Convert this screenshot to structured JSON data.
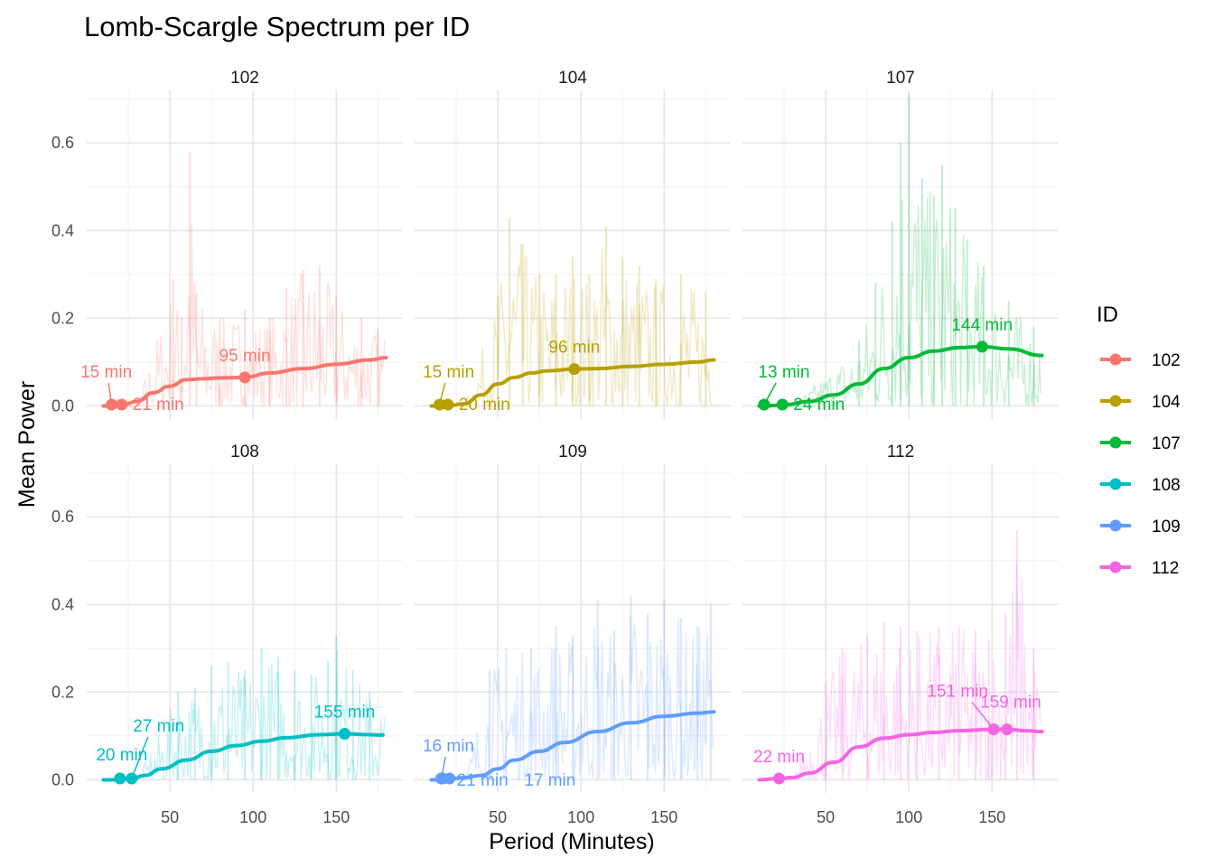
{
  "chart_data": {
    "type": "line",
    "title": "Lomb-Scargle Spectrum per ID",
    "xlabel": "Period (Minutes)",
    "ylabel": "Mean Power",
    "xlim": [
      0,
      190
    ],
    "ylim": [
      -0.03,
      0.72
    ],
    "x_ticks": [
      50,
      100,
      150
    ],
    "y_ticks": [
      0.0,
      0.2,
      0.4,
      0.6
    ],
    "y_tick_labels": [
      "0.0",
      "0.2",
      "0.4",
      "0.6"
    ],
    "grid": true,
    "legend": {
      "title": "ID",
      "position": "right"
    },
    "facets": [
      {
        "id": "102",
        "color": "#F8766D",
        "smooth": [
          [
            10,
            0.0
          ],
          [
            20,
            0.0
          ],
          [
            30,
            0.01
          ],
          [
            40,
            0.03
          ],
          [
            50,
            0.045
          ],
          [
            60,
            0.06
          ],
          [
            70,
            0.062
          ],
          [
            80,
            0.064
          ],
          [
            95,
            0.065
          ],
          [
            110,
            0.075
          ],
          [
            130,
            0.085
          ],
          [
            150,
            0.095
          ],
          [
            170,
            0.105
          ],
          [
            180,
            0.11
          ]
        ],
        "peaks": [
          {
            "x": 15,
            "y": 0.003,
            "label": "15 min"
          },
          {
            "x": 21,
            "y": 0.003,
            "label": "21 min"
          },
          {
            "x": 95,
            "y": 0.065,
            "label": "95 min"
          }
        ],
        "raw_spikes": [
          [
            62,
            0.58
          ],
          [
            52,
            0.29
          ],
          [
            57,
            0.2
          ],
          [
            66,
            0.26
          ],
          [
            80,
            0.2
          ],
          [
            95,
            0.22
          ],
          [
            110,
            0.2
          ],
          [
            120,
            0.27
          ],
          [
            130,
            0.31
          ],
          [
            140,
            0.32
          ],
          [
            150,
            0.25
          ],
          [
            165,
            0.2
          ],
          [
            175,
            0.18
          ]
        ]
      },
      {
        "id": "104",
        "color": "#B79F00",
        "smooth": [
          [
            10,
            0.0
          ],
          [
            20,
            0.0
          ],
          [
            30,
            0.005
          ],
          [
            40,
            0.025
          ],
          [
            50,
            0.05
          ],
          [
            60,
            0.065
          ],
          [
            70,
            0.075
          ],
          [
            80,
            0.08
          ],
          [
            96,
            0.084
          ],
          [
            110,
            0.085
          ],
          [
            130,
            0.09
          ],
          [
            150,
            0.095
          ],
          [
            170,
            0.1
          ],
          [
            180,
            0.105
          ]
        ],
        "peaks": [
          {
            "x": 15,
            "y": 0.003,
            "label": "15 min"
          },
          {
            "x": 20,
            "y": 0.003,
            "label": "20 min"
          },
          {
            "x": 96,
            "y": 0.084,
            "label": "96 min"
          }
        ],
        "raw_spikes": [
          [
            50,
            0.25
          ],
          [
            57,
            0.43
          ],
          [
            65,
            0.37
          ],
          [
            75,
            0.3
          ],
          [
            85,
            0.3
          ],
          [
            95,
            0.34
          ],
          [
            105,
            0.3
          ],
          [
            115,
            0.41
          ],
          [
            125,
            0.34
          ],
          [
            135,
            0.32
          ],
          [
            145,
            0.29
          ],
          [
            160,
            0.3
          ],
          [
            175,
            0.26
          ]
        ]
      },
      {
        "id": "107",
        "color": "#00BA38",
        "smooth": [
          [
            10,
            0.0
          ],
          [
            13,
            0.0
          ],
          [
            24,
            0.002
          ],
          [
            40,
            0.01
          ],
          [
            55,
            0.025
          ],
          [
            70,
            0.05
          ],
          [
            85,
            0.085
          ],
          [
            100,
            0.11
          ],
          [
            115,
            0.125
          ],
          [
            130,
            0.133
          ],
          [
            144,
            0.135
          ],
          [
            160,
            0.13
          ],
          [
            180,
            0.115
          ]
        ],
        "peaks": [
          {
            "x": 13,
            "y": 0.003,
            "label": "13 min"
          },
          {
            "x": 24,
            "y": 0.003,
            "label": "24 min"
          },
          {
            "x": 144,
            "y": 0.135,
            "label": "144 min"
          }
        ],
        "raw_spikes": [
          [
            70,
            0.15
          ],
          [
            80,
            0.28
          ],
          [
            90,
            0.42
          ],
          [
            95,
            0.6
          ],
          [
            100,
            0.71
          ],
          [
            108,
            0.52
          ],
          [
            115,
            0.48
          ],
          [
            120,
            0.55
          ],
          [
            128,
            0.45
          ],
          [
            135,
            0.38
          ],
          [
            145,
            0.32
          ],
          [
            160,
            0.24
          ],
          [
            175,
            0.18
          ]
        ]
      },
      {
        "id": "108",
        "color": "#00BFC4",
        "smooth": [
          [
            10,
            0.0
          ],
          [
            20,
            0.0
          ],
          [
            27,
            0.003
          ],
          [
            35,
            0.01
          ],
          [
            45,
            0.025
          ],
          [
            60,
            0.045
          ],
          [
            75,
            0.065
          ],
          [
            90,
            0.078
          ],
          [
            105,
            0.088
          ],
          [
            120,
            0.096
          ],
          [
            140,
            0.103
          ],
          [
            155,
            0.105
          ],
          [
            170,
            0.103
          ],
          [
            178,
            0.102
          ]
        ],
        "peaks": [
          {
            "x": 20,
            "y": 0.003,
            "label": "20 min"
          },
          {
            "x": 27,
            "y": 0.003,
            "label": "27 min"
          },
          {
            "x": 155,
            "y": 0.105,
            "label": "155 min"
          }
        ],
        "raw_spikes": [
          [
            55,
            0.2
          ],
          [
            65,
            0.21
          ],
          [
            75,
            0.26
          ],
          [
            85,
            0.27
          ],
          [
            95,
            0.25
          ],
          [
            105,
            0.3
          ],
          [
            115,
            0.28
          ],
          [
            125,
            0.25
          ],
          [
            135,
            0.24
          ],
          [
            145,
            0.27
          ],
          [
            150,
            0.33
          ],
          [
            160,
            0.25
          ],
          [
            170,
            0.2
          ]
        ]
      },
      {
        "id": "109",
        "color": "#619CFF",
        "smooth": [
          [
            10,
            0.0
          ],
          [
            16,
            0.0
          ],
          [
            21,
            0.002
          ],
          [
            30,
            0.005
          ],
          [
            40,
            0.01
          ],
          [
            50,
            0.025
          ],
          [
            60,
            0.045
          ],
          [
            75,
            0.065
          ],
          [
            90,
            0.085
          ],
          [
            110,
            0.11
          ],
          [
            130,
            0.13
          ],
          [
            150,
            0.145
          ],
          [
            170,
            0.152
          ],
          [
            180,
            0.155
          ]
        ],
        "peaks": [
          {
            "x": 16,
            "y": 0.003,
            "label": "16 min"
          },
          {
            "x": 21,
            "y": 0.003,
            "label": "21 min"
          },
          {
            "x": 17,
            "y": 0.003,
            "label": "17 min"
          }
        ],
        "raw_spikes": [
          [
            45,
            0.25
          ],
          [
            55,
            0.3
          ],
          [
            70,
            0.3
          ],
          [
            85,
            0.35
          ],
          [
            95,
            0.33
          ],
          [
            110,
            0.41
          ],
          [
            120,
            0.34
          ],
          [
            130,
            0.42
          ],
          [
            140,
            0.38
          ],
          [
            150,
            0.41
          ],
          [
            160,
            0.37
          ],
          [
            170,
            0.35
          ],
          [
            178,
            0.4
          ]
        ]
      },
      {
        "id": "112",
        "color": "#F564E3",
        "smooth": [
          [
            10,
            0.0
          ],
          [
            22,
            0.003
          ],
          [
            30,
            0.005
          ],
          [
            40,
            0.015
          ],
          [
            55,
            0.04
          ],
          [
            70,
            0.075
          ],
          [
            85,
            0.095
          ],
          [
            100,
            0.103
          ],
          [
            115,
            0.108
          ],
          [
            130,
            0.112
          ],
          [
            150,
            0.115
          ],
          [
            159,
            0.115
          ],
          [
            170,
            0.112
          ],
          [
            180,
            0.11
          ]
        ],
        "peaks": [
          {
            "x": 22,
            "y": 0.003,
            "label": "22 min"
          },
          {
            "x": 151,
            "y": 0.115,
            "label": "151 min"
          },
          {
            "x": 159,
            "y": 0.115,
            "label": "159 min"
          }
        ],
        "raw_spikes": [
          [
            50,
            0.22
          ],
          [
            60,
            0.3
          ],
          [
            75,
            0.33
          ],
          [
            85,
            0.36
          ],
          [
            95,
            0.35
          ],
          [
            105,
            0.34
          ],
          [
            118,
            0.35
          ],
          [
            130,
            0.35
          ],
          [
            140,
            0.34
          ],
          [
            148,
            0.32
          ],
          [
            158,
            0.38
          ],
          [
            165,
            0.57
          ],
          [
            175,
            0.3
          ]
        ]
      }
    ]
  }
}
